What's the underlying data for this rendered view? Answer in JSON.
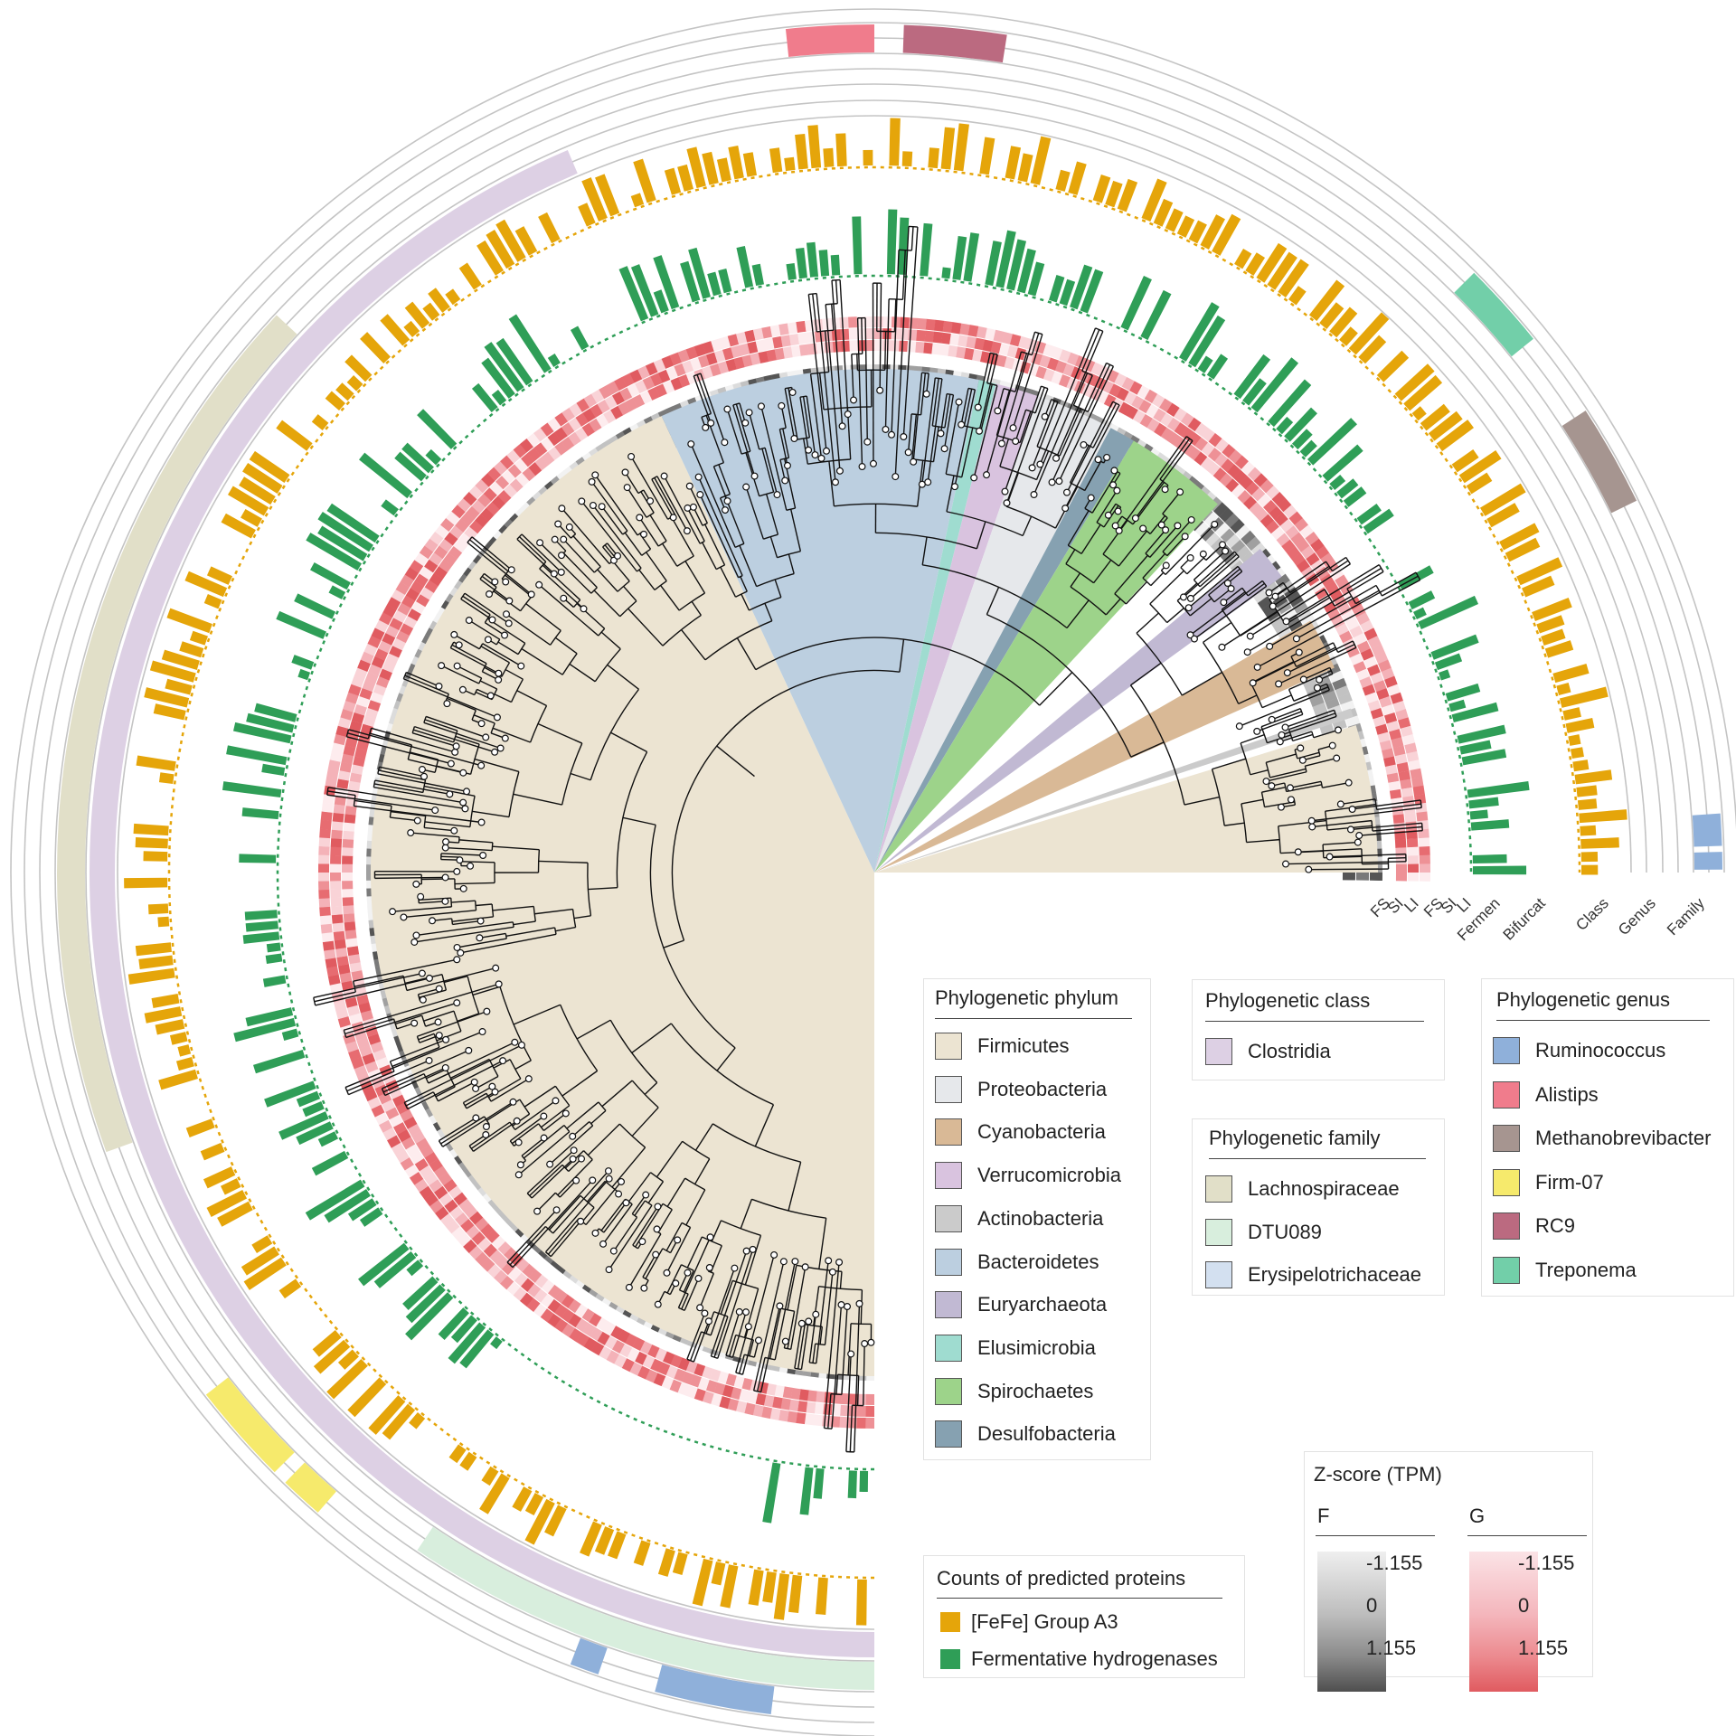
{
  "ring_labels": [
    "FS",
    "SI",
    "LI",
    "FS",
    "SI",
    "LI",
    "Fermen",
    "Bifurcat",
    "Class",
    "Genus",
    "Family"
  ],
  "legend_phylum": {
    "title": "Phylogenetic phylum",
    "items": [
      {
        "label": "Firmicutes",
        "color": "#ece4d2"
      },
      {
        "label": "Proteobacteria",
        "color": "#e6e8eb"
      },
      {
        "label": "Cyanobacteria",
        "color": "#d9b996"
      },
      {
        "label": "Verrucomicrobia",
        "color": "#d9c3df"
      },
      {
        "label": "Actinobacteria",
        "color": "#cbcbcb"
      },
      {
        "label": "Bacteroidetes",
        "color": "#bccfe0"
      },
      {
        "label": "Euryarchaeota",
        "color": "#c1b9d3"
      },
      {
        "label": "Elusimicrobia",
        "color": "#9fdcd0"
      },
      {
        "label": "Spirochaetes",
        "color": "#9dd38a"
      },
      {
        "label": "Desulfobacteria",
        "color": "#86a1b1"
      }
    ]
  },
  "legend_class": {
    "title": "Phylogenetic class",
    "items": [
      {
        "label": "Clostridia",
        "color": "#ddd0e4"
      }
    ]
  },
  "legend_family": {
    "title": "Phylogenetic family",
    "items": [
      {
        "label": "Lachnospiraceae",
        "color": "#e1dfc8"
      },
      {
        "label": "DTU089",
        "color": "#d8eedd"
      },
      {
        "label": "Erysipelotrichaceae",
        "color": "#d3e0f0"
      }
    ]
  },
  "legend_genus": {
    "title": "Phylogenetic genus",
    "items": [
      {
        "label": "Ruminococcus",
        "color": "#8fb0da"
      },
      {
        "label": "Alistips",
        "color": "#f07c8c"
      },
      {
        "label": "Methanobrevibacter",
        "color": "#a69590"
      },
      {
        "label": "Firm-07",
        "color": "#f6ea6c"
      },
      {
        "label": "RC9",
        "color": "#bb6a80"
      },
      {
        "label": "Treponema",
        "color": "#72cfa9"
      }
    ]
  },
  "legend_counts": {
    "title": "Counts of predicted proteins",
    "items": [
      {
        "label": "[FeFe] Group A3",
        "color": "#e5a50a"
      },
      {
        "label": "Fermentative hydrogenases",
        "color": "#2f9e57"
      }
    ]
  },
  "zscore": {
    "title": "Z-score (TPM)",
    "f_label": "F",
    "g_label": "G",
    "f_ticks": [
      "-1.155",
      "0",
      "1.155"
    ],
    "g_ticks": [
      "-1.155",
      "0",
      "1.155"
    ]
  }
}
